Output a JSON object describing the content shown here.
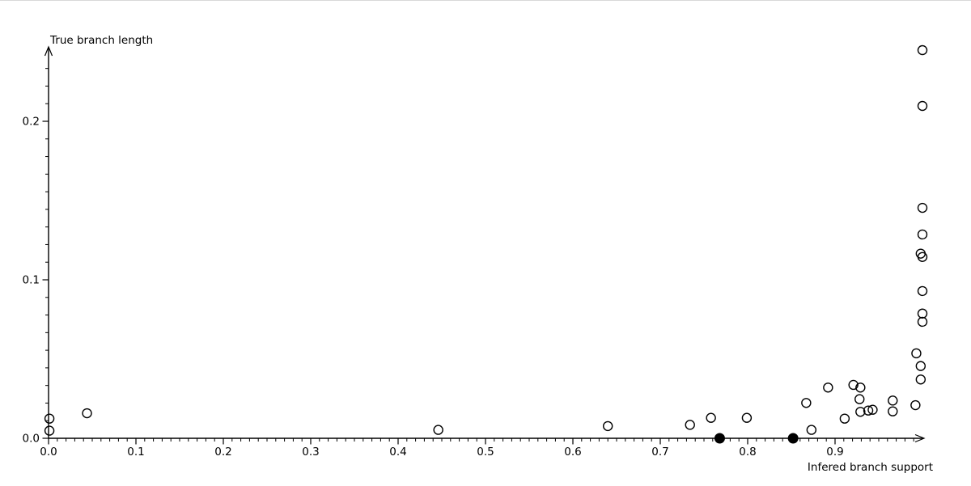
{
  "page": {
    "background": "#ffffff",
    "top_border_color": "#d8d8d8",
    "axis_color": "#000000",
    "marker_color": "#000000"
  },
  "chart_data": {
    "type": "scatter",
    "title": "",
    "xlabel": "Infered branch support",
    "ylabel": "True branch length",
    "x_axis": {
      "min": 0.0,
      "max": 1.0,
      "major_tick_step": 0.1,
      "minor_tick_step": 0.01,
      "tick_labels": [
        "0.0",
        "0.1",
        "0.2",
        "0.3",
        "0.4",
        "0.5",
        "0.6",
        "0.7",
        "0.8",
        "0.9"
      ],
      "arrow": true
    },
    "y_axis": {
      "min": 0.0,
      "max": 0.2466,
      "major_tick_step": 0.1,
      "minor_ticks_per_major": 9,
      "tick_labels": [
        "0.0",
        "0.1",
        "0.2"
      ],
      "arrow": true
    },
    "grid": false,
    "legend": "none",
    "series": [
      {
        "name": "open-circles",
        "marker": "open-circle",
        "color": "#000000",
        "points": [
          [
            0.001,
            0.0124
          ],
          [
            0.001,
            0.0048
          ],
          [
            0.044,
            0.0158
          ],
          [
            0.446,
            0.0053
          ],
          [
            0.64,
            0.0077
          ],
          [
            0.734,
            0.0085
          ],
          [
            0.758,
            0.0129
          ],
          [
            0.799,
            0.0129
          ],
          [
            0.867,
            0.0223
          ],
          [
            0.873,
            0.0053
          ],
          [
            0.892,
            0.032
          ],
          [
            0.911,
            0.0124
          ],
          [
            0.921,
            0.0337
          ],
          [
            0.929,
            0.032
          ],
          [
            0.928,
            0.0247
          ],
          [
            0.929,
            0.0167
          ],
          [
            0.938,
            0.0175
          ],
          [
            0.943,
            0.018
          ],
          [
            0.966,
            0.0238
          ],
          [
            0.966,
            0.017
          ],
          [
            0.992,
            0.0209
          ],
          [
            0.993,
            0.0536
          ],
          [
            0.998,
            0.0456
          ],
          [
            0.998,
            0.0371
          ],
          [
            1.0,
            0.2449
          ],
          [
            1.0,
            0.2097
          ],
          [
            1.0,
            0.1454
          ],
          [
            1.0,
            0.1286
          ],
          [
            0.998,
            0.1165
          ],
          [
            1.0,
            0.1144
          ],
          [
            1.0,
            0.0929
          ],
          [
            1.0,
            0.0787
          ],
          [
            1.0,
            0.0735
          ]
        ]
      },
      {
        "name": "filled-circles",
        "marker": "filled-circle",
        "color": "#000000",
        "points": [
          [
            0.768,
            0.0
          ],
          [
            0.852,
            0.0
          ]
        ]
      }
    ]
  }
}
